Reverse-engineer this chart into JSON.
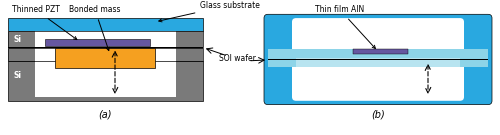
{
  "fig_width": 5.0,
  "fig_height": 1.35,
  "dpi": 100,
  "bg_color": "#ffffff",
  "colors": {
    "blue_dark": "#29a8e0",
    "blue_light": "#8dd4e8",
    "blue_lighter": "#b8e4f0",
    "gray_dark": "#7a7a7a",
    "purple": "#6657a0",
    "orange": "#f5a020",
    "black": "#000000",
    "white": "#ffffff"
  },
  "labels": {
    "thinned_pzt": "Thinned PZT",
    "bonded_mass": "Bonded mass",
    "glass_substrate": "Glass substrate",
    "soi_wafer": "SOI wafer",
    "thin_film_aln": "Thin film AlN",
    "si_top": "Si",
    "si_bot": "Si",
    "sub_a": "(a)",
    "sub_b": "(b)"
  }
}
